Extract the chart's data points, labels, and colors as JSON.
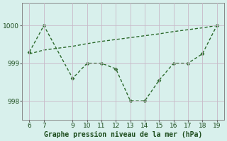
{
  "x": [
    6,
    7,
    9,
    10,
    11,
    12,
    13,
    14,
    15,
    16,
    17,
    18,
    19
  ],
  "y": [
    999.3,
    1000.0,
    998.6,
    999.0,
    999.0,
    998.85,
    998.0,
    998.0,
    998.55,
    999.0,
    999.0,
    999.25,
    1000.0
  ],
  "x_smooth": [
    6,
    7,
    9,
    10,
    11,
    12,
    13,
    14,
    15,
    16,
    17,
    18,
    19
  ],
  "y_smooth": [
    999.25,
    999.35,
    999.45,
    999.52,
    999.58,
    999.63,
    999.68,
    999.73,
    999.78,
    999.84,
    999.89,
    999.94,
    1000.0
  ],
  "line_color": "#2d6a2d",
  "marker": "D",
  "marker_size": 2.5,
  "marker_color": "#2d6a2d",
  "bg_color": "#d8f0ec",
  "grid_color": "#c8b8c8",
  "xlabel": "Graphe pression niveau de la mer (hPa)",
  "xlabel_fontsize": 7.0,
  "xticks": [
    6,
    7,
    9,
    10,
    11,
    12,
    13,
    14,
    15,
    16,
    17,
    18,
    19
  ],
  "yticks": [
    998,
    999,
    1000
  ],
  "ylim": [
    997.5,
    1000.6
  ],
  "xlim": [
    5.5,
    19.5
  ],
  "tick_fontsize": 6.5,
  "linewidth": 1.0
}
